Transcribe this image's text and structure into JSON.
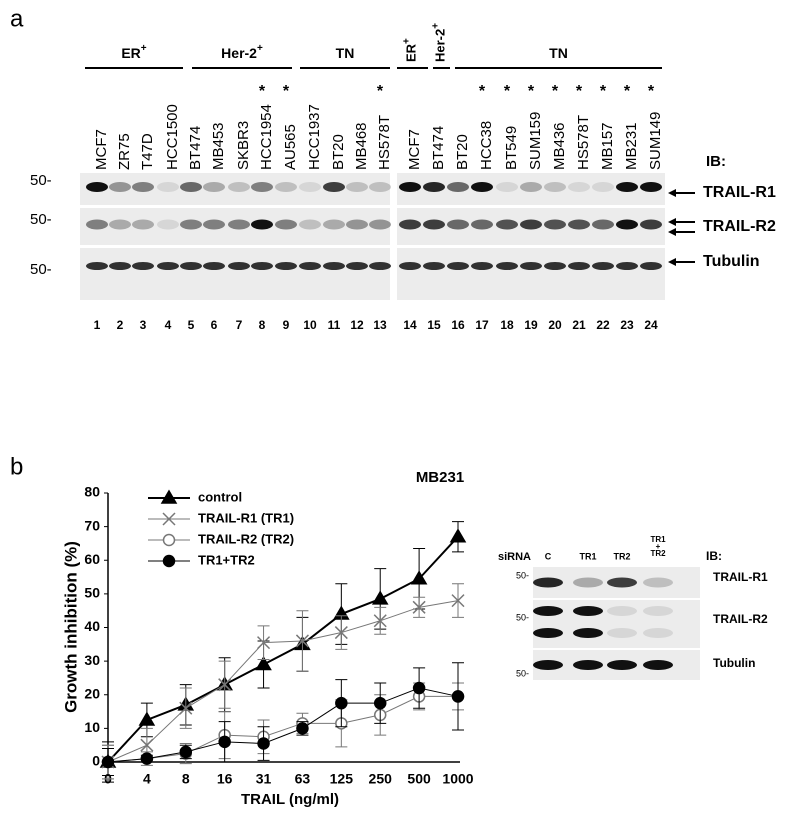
{
  "panel_a": {
    "label": "a",
    "groups": [
      {
        "text": "ER",
        "sup": "+"
      },
      {
        "text": "Her-2",
        "sup": "+"
      },
      {
        "text": "TN"
      },
      {
        "text": "ER",
        "sup": "+"
      },
      {
        "text": "Her-2",
        "sup": "+"
      },
      {
        "text": "TN"
      }
    ],
    "lanes": [
      "MCF7",
      "ZR75",
      "T47D",
      "HCC1500",
      "BT474",
      "MB453",
      "SKBR3",
      "HCC1954",
      "AU565",
      "HCC1937",
      "BT20",
      "MB468",
      "HS578T",
      "MCF7",
      "BT474",
      "BT20",
      "HCC38",
      "BT549",
      "SUM159",
      "MB436",
      "HS578T",
      "MB157",
      "MB231",
      "SUM149"
    ],
    "lane_numbers": [
      "1",
      "2",
      "3",
      "4",
      "5",
      "6",
      "7",
      "8",
      "9",
      "10",
      "11",
      "12",
      "13",
      "14",
      "15",
      "16",
      "17",
      "18",
      "19",
      "20",
      "21",
      "22",
      "23",
      "24"
    ],
    "asterisk": "*",
    "asterisk_lanes": [
      "8",
      "9",
      "13",
      "17",
      "18",
      "19",
      "20",
      "21",
      "22",
      "23",
      "24"
    ],
    "markers": [
      "50-",
      "50-",
      "50-"
    ],
    "ib_label": "IB:",
    "bands": [
      "TRAIL-R1",
      "TRAIL-R2",
      "Tubulin"
    ]
  },
  "panel_b_label": "b",
  "chart_data": {
    "type": "line",
    "title": "MB231",
    "y_label": "Growth inhibition (%)",
    "x_label": "TRAIL (ng/ml)",
    "categories": [
      "0",
      "4",
      "8",
      "16",
      "31",
      "63",
      "125",
      "250",
      "500",
      "1000"
    ],
    "ylim": [
      0,
      80
    ],
    "yticks": [
      0,
      10,
      20,
      30,
      40,
      50,
      60,
      70,
      80
    ],
    "series": [
      {
        "name": "control",
        "color": "#000000",
        "marker": "triangle",
        "values": [
          0,
          12.5,
          17,
          23,
          29,
          35,
          44,
          48.5,
          54.5,
          67
        ],
        "errors": [
          6,
          5,
          6,
          8,
          7,
          8,
          9,
          9,
          9,
          4.5
        ]
      },
      {
        "name": "TRAIL-R1 (TR1)",
        "color": "#777777",
        "marker": "cross",
        "values": [
          0,
          5,
          16,
          23,
          35.5,
          36,
          38.5,
          42,
          46,
          48
        ],
        "errors": [
          5,
          5,
          6,
          7,
          5,
          9,
          5,
          4,
          3,
          5
        ]
      },
      {
        "name": "TRAIL-R2 (TR2)",
        "color": "#777777",
        "marker": "open-circle",
        "values": [
          0,
          1,
          2.5,
          8,
          7.5,
          11.5,
          11.5,
          14,
          19.5,
          19.5
        ],
        "errors": [
          5,
          2,
          3,
          7,
          5,
          3,
          7,
          6,
          4,
          4
        ]
      },
      {
        "name": "TR1+TR2",
        "color": "#000000",
        "marker": "filled-circle",
        "values": [
          0,
          1,
          3,
          6,
          5.5,
          10,
          17.5,
          17.5,
          22,
          19.5
        ],
        "errors": [
          4,
          1,
          2,
          6,
          5,
          2,
          7,
          6,
          6,
          10
        ]
      }
    ]
  },
  "blot_b": {
    "sirna_label": "siRNA",
    "lanes": [
      "C",
      "TR1",
      "TR2",
      {
        "top": "TR1",
        "mid": "+",
        "bottom": "TR2"
      }
    ],
    "ib_label": "IB:",
    "markers": [
      "50-",
      "50-",
      "50-"
    ],
    "bands": [
      "TRAIL-R1",
      "TRAIL-R2",
      "Tubulin"
    ]
  }
}
